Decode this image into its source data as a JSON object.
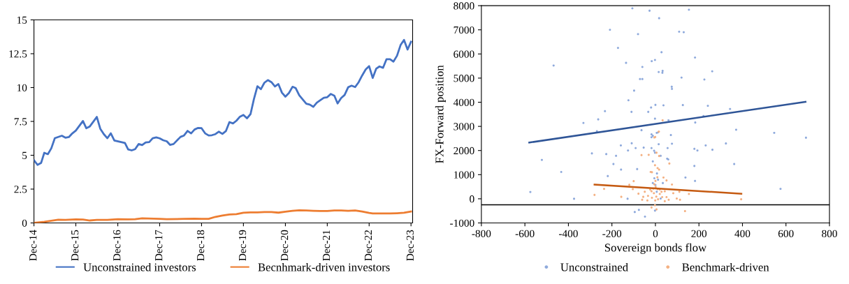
{
  "chart_data": [
    {
      "type": "line",
      "xlim": [
        "2014-12",
        "2023-12-15"
      ],
      "ylim": [
        0,
        15
      ],
      "yticks": [
        0,
        2.5,
        5,
        7.5,
        10,
        12.5,
        15
      ],
      "xticks": [
        {
          "value": "2014-12",
          "label": "Dec-14"
        },
        {
          "value": "2015-12",
          "label": "Dec-15"
        },
        {
          "value": "2016-12",
          "label": "Dec-16"
        },
        {
          "value": "2017-12",
          "label": "Dec-17"
        },
        {
          "value": "2018-12",
          "label": "Dec-18"
        },
        {
          "value": "2019-12",
          "label": "Dec-19"
        },
        {
          "value": "2020-12",
          "label": "Dec-20"
        },
        {
          "value": "2021-12",
          "label": "Dec-21"
        },
        {
          "value": "2022-12",
          "label": "Dec-22"
        },
        {
          "value": "2023-12",
          "label": "Dec-23"
        }
      ],
      "grid": false,
      "legend": "bottom",
      "marker": "none",
      "line_style": "solid",
      "series": [
        {
          "name": "Unconstrained investors",
          "color": "#4472c4",
          "x": [
            "2014-12",
            "2015-01",
            "2015-02",
            "2015-03",
            "2015-04",
            "2015-05",
            "2015-06",
            "2015-08",
            "2015-09",
            "2015-10",
            "2015-11",
            "2015-12",
            "2016-02",
            "2016-03",
            "2016-04",
            "2016-06",
            "2016-07",
            "2016-08",
            "2016-09",
            "2016-10",
            "2016-11",
            "2017-02",
            "2017-03",
            "2017-04",
            "2017-05",
            "2017-06",
            "2017-07",
            "2017-08",
            "2017-09",
            "2017-10",
            "2017-11",
            "2017-12",
            "2018-01",
            "2018-02",
            "2018-03",
            "2018-04",
            "2018-06",
            "2018-07",
            "2018-08",
            "2018-09",
            "2018-10",
            "2018-11",
            "2018-12",
            "2019-01",
            "2019-02",
            "2019-03",
            "2019-04",
            "2019-05",
            "2019-06",
            "2019-07",
            "2019-08",
            "2019-09",
            "2019-10",
            "2019-11",
            "2019-12",
            "2020-01",
            "2020-02",
            "2020-03",
            "2020-04",
            "2020-05",
            "2020-06",
            "2020-07",
            "2020-08",
            "2020-09",
            "2020-10",
            "2020-11",
            "2020-12",
            "2021-01",
            "2021-02",
            "2021-03",
            "2021-04",
            "2021-06",
            "2021-07",
            "2021-08",
            "2021-09",
            "2021-10",
            "2021-11",
            "2021-12",
            "2022-01",
            "2022-02",
            "2022-03",
            "2022-04",
            "2022-05",
            "2022-06",
            "2022-07",
            "2022-08",
            "2022-09",
            "2022-10",
            "2022-11",
            "2022-12",
            "2023-01",
            "2023-02",
            "2023-03",
            "2023-04",
            "2023-05",
            "2023-06",
            "2023-07",
            "2023-08",
            "2023-09",
            "2023-10",
            "2023-11",
            "2023-12"
          ],
          "values": [
            4.64,
            4.29,
            4.43,
            5.18,
            5.08,
            5.51,
            6.26,
            6.44,
            6.3,
            6.34,
            6.62,
            6.82,
            7.53,
            7.0,
            7.13,
            7.83,
            6.96,
            6.56,
            6.26,
            6.62,
            6.09,
            5.91,
            5.43,
            5.36,
            5.45,
            5.83,
            5.75,
            5.95,
            5.97,
            6.26,
            6.32,
            6.25,
            6.11,
            6.03,
            5.77,
            5.83,
            6.36,
            6.46,
            6.8,
            6.62,
            6.9,
            7.02,
            7.0,
            6.62,
            6.46,
            6.48,
            6.56,
            6.74,
            6.58,
            6.78,
            7.45,
            7.35,
            7.55,
            7.85,
            7.98,
            7.73,
            8.04,
            9.13,
            10.1,
            9.88,
            10.36,
            10.55,
            10.4,
            10.08,
            10.26,
            9.62,
            9.33,
            9.6,
            10.06,
            9.96,
            9.43,
            8.81,
            8.74,
            8.58,
            8.89,
            9.07,
            9.25,
            9.29,
            9.53,
            9.39,
            8.83,
            9.23,
            9.45,
            10.02,
            10.14,
            10.04,
            10.4,
            10.89,
            11.34,
            11.58,
            10.71,
            11.4,
            11.56,
            11.46,
            12.09,
            12.09,
            11.92,
            12.35,
            13.14,
            13.52,
            12.81,
            13.38
          ]
        },
        {
          "name": "Becnhmark-driven investors",
          "color": "#ed7d31",
          "x": [
            "2014-12",
            "2015-03",
            "2015-05",
            "2015-07",
            "2015-09",
            "2015-12",
            "2016-02",
            "2016-04",
            "2016-06",
            "2016-09",
            "2016-12",
            "2017-03",
            "2017-05",
            "2017-07",
            "2017-12",
            "2018-02",
            "2018-07",
            "2018-10",
            "2018-12",
            "2019-02",
            "2019-04",
            "2019-06",
            "2019-08",
            "2019-10",
            "2019-12",
            "2020-02",
            "2020-04",
            "2020-06",
            "2020-08",
            "2020-10",
            "2020-12",
            "2021-02",
            "2021-04",
            "2021-06",
            "2021-08",
            "2021-10",
            "2021-12",
            "2022-02",
            "2022-04",
            "2022-06",
            "2022-08",
            "2022-10",
            "2022-12",
            "2023-01",
            "2023-04",
            "2023-06",
            "2023-08",
            "2023-10",
            "2023-12"
          ],
          "values": [
            0.0,
            0.08,
            0.16,
            0.24,
            0.22,
            0.26,
            0.25,
            0.18,
            0.22,
            0.22,
            0.28,
            0.26,
            0.28,
            0.34,
            0.3,
            0.28,
            0.3,
            0.32,
            0.3,
            0.3,
            0.45,
            0.55,
            0.63,
            0.65,
            0.75,
            0.78,
            0.78,
            0.8,
            0.8,
            0.76,
            0.83,
            0.9,
            0.93,
            0.92,
            0.9,
            0.88,
            0.88,
            0.92,
            0.92,
            0.9,
            0.92,
            0.84,
            0.74,
            0.7,
            0.7,
            0.7,
            0.72,
            0.75,
            0.84
          ]
        }
      ]
    },
    {
      "type": "scatter",
      "xlim": [
        -800,
        800
      ],
      "ylim": [
        -1000,
        8000
      ],
      "xticks": [
        -800,
        -600,
        -400,
        -200,
        0,
        200,
        400,
        600,
        800
      ],
      "yticks": [
        -1000,
        0,
        1000,
        2000,
        3000,
        4000,
        5000,
        6000,
        7000,
        8000
      ],
      "xlabel": "Sovereign bonds flow",
      "ylabel": "FX-Forward position",
      "grid": false,
      "legend": "bottom",
      "marker": "circle",
      "ref_lines": [
        {
          "axis": "y",
          "value": -250,
          "color": "#000000"
        }
      ],
      "series": [
        {
          "name": "Unconstrained",
          "color": "#8faadc",
          "x": [
            -106,
            -27,
            154,
            17,
            -209,
            -80,
            109,
            130,
            -172,
            28,
            182,
            -468,
            -135,
            -17,
            -2,
            -60,
            15,
            33,
            32,
            261,
            -71,
            -60,
            120,
            225,
            75,
            76,
            -98,
            -124,
            -232,
            -110,
            -33,
            -20,
            0,
            37,
            126,
            241,
            343,
            -2,
            60,
            221,
            -331,
            -263,
            183,
            -269,
            -64,
            -18,
            -12,
            -18,
            6,
            12,
            71,
            371,
            546,
            692,
            -109,
            -159,
            15,
            76,
            231,
            324,
            -292,
            -226,
            -181,
            -126,
            -91,
            -54,
            -18,
            -6,
            -2,
            24,
            56,
            54,
            59,
            179,
            193,
            262,
            -522,
            -193,
            -12,
            179,
            362,
            -433,
            -158,
            -84,
            -219,
            7,
            138,
            182,
            -5,
            12,
            -575,
            -374,
            -128,
            575,
            0,
            -12,
            34,
            6,
            24,
            -95,
            -76,
            -48,
            -2
          ],
          "values": [
            7890,
            7790,
            7830,
            7480,
            7000,
            6820,
            6920,
            6900,
            6250,
            6070,
            5850,
            5520,
            5630,
            5700,
            5750,
            5460,
            5250,
            5300,
            5220,
            5280,
            4960,
            4960,
            5020,
            4940,
            4640,
            4550,
            4480,
            4080,
            3630,
            3600,
            3600,
            3780,
            3890,
            3870,
            3880,
            3850,
            3720,
            3320,
            3250,
            3430,
            3140,
            3290,
            3160,
            2800,
            2840,
            2670,
            2610,
            2550,
            2730,
            2750,
            2640,
            2860,
            2730,
            2530,
            2300,
            2210,
            2260,
            2280,
            2210,
            2290,
            1880,
            1850,
            1780,
            2000,
            2100,
            2120,
            2100,
            1990,
            1910,
            1780,
            2100,
            1660,
            1630,
            2070,
            2000,
            2030,
            1610,
            1440,
            1550,
            1360,
            1440,
            1110,
            1210,
            1230,
            940,
            1050,
            880,
            740,
            850,
            790,
            280,
            0,
            0,
            410,
            570,
            650,
            650,
            290,
            10,
            -550,
            -460,
            -740,
            -490
          ]
        },
        {
          "name": "Benchmark-driven",
          "color": "#f4b183",
          "x": [
            33,
            15,
            -5,
            -1,
            16,
            -31,
            -64,
            5,
            17,
            64,
            -2,
            10,
            17,
            -16,
            -22,
            9,
            37,
            0,
            51,
            -100,
            -120,
            -5,
            76,
            -280,
            -236,
            -157,
            -104,
            -78,
            -56,
            -49,
            -34,
            -18,
            -16,
            -7,
            -1,
            4,
            10,
            12,
            20,
            31,
            43,
            51,
            61,
            82,
            98,
            110,
            113,
            154,
            394,
            -18,
            -2,
            5,
            136,
            -61,
            -37,
            -10,
            1,
            20,
            -24,
            28,
            43
          ],
          "values": [
            3250,
            2780,
            2540,
            2560,
            2780,
            1820,
            1810,
            1910,
            1770,
            1460,
            1390,
            1270,
            1210,
            1100,
            1110,
            890,
            880,
            740,
            760,
            730,
            580,
            600,
            590,
            160,
            410,
            80,
            400,
            210,
            80,
            290,
            120,
            310,
            40,
            230,
            -70,
            90,
            400,
            -20,
            200,
            70,
            -100,
            70,
            -40,
            230,
            10,
            290,
            -40,
            200,
            -20,
            -360,
            -270,
            -440,
            -510,
            -40,
            -70,
            420,
            490,
            380,
            380,
            290,
            310
          ]
        },
        {
          "type": "line",
          "color": "#2f5597",
          "marker": "none",
          "x": [
            -580,
            690
          ],
          "values": [
            2330,
            4020
          ]
        },
        {
          "type": "line",
          "color": "#c55a11",
          "marker": "none",
          "x": [
            -280,
            395
          ],
          "values": [
            590,
            210
          ]
        }
      ]
    }
  ]
}
